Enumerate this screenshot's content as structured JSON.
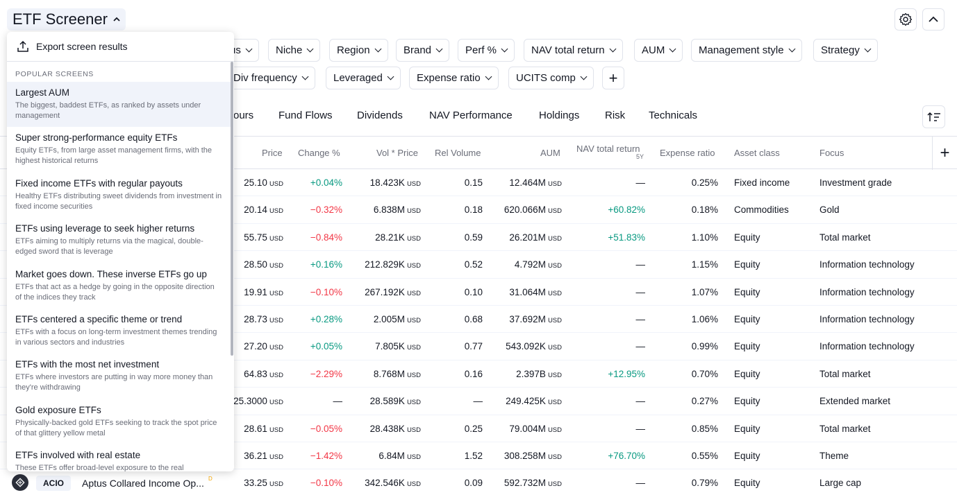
{
  "header": {
    "title": "ETF Screener"
  },
  "filters": {
    "row1": [
      "us",
      "Niche",
      "Region",
      "Brand",
      "Perf %",
      "NAV total return",
      "AUM",
      "Management style",
      "Strategy"
    ],
    "row2": [
      "Div frequency",
      "Leveraged",
      "Expense ratio",
      "UCITS comp"
    ]
  },
  "tabs": [
    "ours",
    "Fund Flows",
    "Dividends",
    "NAV Performance",
    "Holdings",
    "Risk",
    "Technicals"
  ],
  "table": {
    "columns": {
      "price": "Price",
      "change": "Change %",
      "volprice": "Vol * Price",
      "relvol": "Rel Volume",
      "aum": "AUM",
      "nav": "NAV total return",
      "nav_sub": "5Y",
      "expense": "Expense ratio",
      "asset": "Asset class",
      "focus": "Focus"
    },
    "currency": "USD",
    "rows": [
      {
        "price": "25.10",
        "change": "+0.04%",
        "dir": "pos",
        "volprice": "18.423K",
        "relvol": "0.15",
        "aum": "12.464M",
        "nav": "—",
        "navdir": "",
        "expense": "0.25%",
        "asset": "Fixed income",
        "focus": "Investment grade"
      },
      {
        "price": "20.14",
        "change": "−0.32%",
        "dir": "neg",
        "volprice": "6.838M",
        "relvol": "0.18",
        "aum": "620.066M",
        "nav": "+60.82%",
        "navdir": "pos",
        "expense": "0.18%",
        "asset": "Commodities",
        "focus": "Gold"
      },
      {
        "price": "55.75",
        "change": "−0.84%",
        "dir": "neg",
        "volprice": "28.21K",
        "relvol": "0.59",
        "aum": "26.201M",
        "nav": "+51.83%",
        "navdir": "pos",
        "expense": "1.10%",
        "asset": "Equity",
        "focus": "Total market"
      },
      {
        "price": "28.50",
        "change": "+0.16%",
        "dir": "pos",
        "volprice": "212.829K",
        "relvol": "0.52",
        "aum": "4.792M",
        "nav": "—",
        "navdir": "",
        "expense": "1.15%",
        "asset": "Equity",
        "focus": "Information technology"
      },
      {
        "price": "19.91",
        "change": "−0.10%",
        "dir": "neg",
        "volprice": "267.192K",
        "relvol": "0.10",
        "aum": "31.064M",
        "nav": "—",
        "navdir": "",
        "expense": "1.07%",
        "asset": "Equity",
        "focus": "Information technology"
      },
      {
        "price": "28.73",
        "change": "+0.28%",
        "dir": "pos",
        "volprice": "2.005M",
        "relvol": "0.68",
        "aum": "37.692M",
        "nav": "—",
        "navdir": "",
        "expense": "1.06%",
        "asset": "Equity",
        "focus": "Information technology"
      },
      {
        "price": "27.20",
        "change": "+0.05%",
        "dir": "pos",
        "volprice": "7.805K",
        "relvol": "0.77",
        "aum": "543.092K",
        "nav": "—",
        "navdir": "",
        "expense": "0.99%",
        "asset": "Equity",
        "focus": "Information technology"
      },
      {
        "price": "64.83",
        "change": "−2.29%",
        "dir": "neg",
        "volprice": "8.768M",
        "relvol": "0.16",
        "aum": "2.397B",
        "nav": "+12.95%",
        "navdir": "pos",
        "expense": "0.70%",
        "asset": "Equity",
        "focus": "Total market"
      },
      {
        "price": "25.3000",
        "change": "—",
        "dir": "",
        "volprice": "28.589K",
        "relvol": "—",
        "aum": "249.425K",
        "nav": "—",
        "navdir": "",
        "expense": "0.27%",
        "asset": "Equity",
        "focus": "Extended market"
      },
      {
        "price": "28.61",
        "change": "−0.05%",
        "dir": "neg",
        "volprice": "28.438K",
        "relvol": "0.25",
        "aum": "79.004M",
        "nav": "—",
        "navdir": "",
        "expense": "0.85%",
        "asset": "Equity",
        "focus": "Total market"
      },
      {
        "price": "36.21",
        "change": "−1.42%",
        "dir": "neg",
        "volprice": "6.84M",
        "relvol": "1.52",
        "aum": "308.258M",
        "nav": "+76.70%",
        "navdir": "pos",
        "expense": "0.55%",
        "asset": "Equity",
        "focus": "Theme"
      },
      {
        "price": "33.25",
        "change": "−0.10%",
        "dir": "neg",
        "volprice": "342.546K",
        "relvol": "0.09",
        "aum": "592.732M",
        "nav": "—",
        "navdir": "",
        "expense": "0.79%",
        "asset": "Equity",
        "focus": "Large cap"
      }
    ],
    "last_row": {
      "symbol": "ACIO",
      "name": "Aptus Collared Income Op...",
      "tag": "D"
    }
  },
  "dropdown": {
    "export_label": "Export screen results",
    "section_label": "POPULAR SCREENS",
    "screens": [
      {
        "title": "Largest AUM",
        "desc": "The biggest, baddest ETFs, as ranked by assets under management"
      },
      {
        "title": "Super strong-performance equity ETFs",
        "desc": "Equity ETFs, from large asset management firms, with the highest historical returns"
      },
      {
        "title": "Fixed income ETFs with regular payouts",
        "desc": "Healthy ETFs distributing sweet dividends from investment in fixed income securities"
      },
      {
        "title": "ETFs using leverage to seek higher returns",
        "desc": "ETFs aiming to multiply returns via the magical, double-edged sword that is leverage"
      },
      {
        "title": "Market goes down. These inverse ETFs go up",
        "desc": "ETFs that act as a hedge by going in the opposite direction of the indices they track"
      },
      {
        "title": "ETFs centered a specific theme or trend",
        "desc": "ETFs with a focus on long-term investment themes trending in various sectors and industries"
      },
      {
        "title": "ETFs with the most net investment",
        "desc": "ETFs where investors are putting in way more money than they're withdrawing"
      },
      {
        "title": "Gold exposure ETFs",
        "desc": "Physically-backed gold ETFs seeking to track the spot price of that glittery yellow metal"
      },
      {
        "title": "ETFs involved with real estate",
        "desc": "These ETFs offer broad-level exposure to the real"
      }
    ]
  }
}
